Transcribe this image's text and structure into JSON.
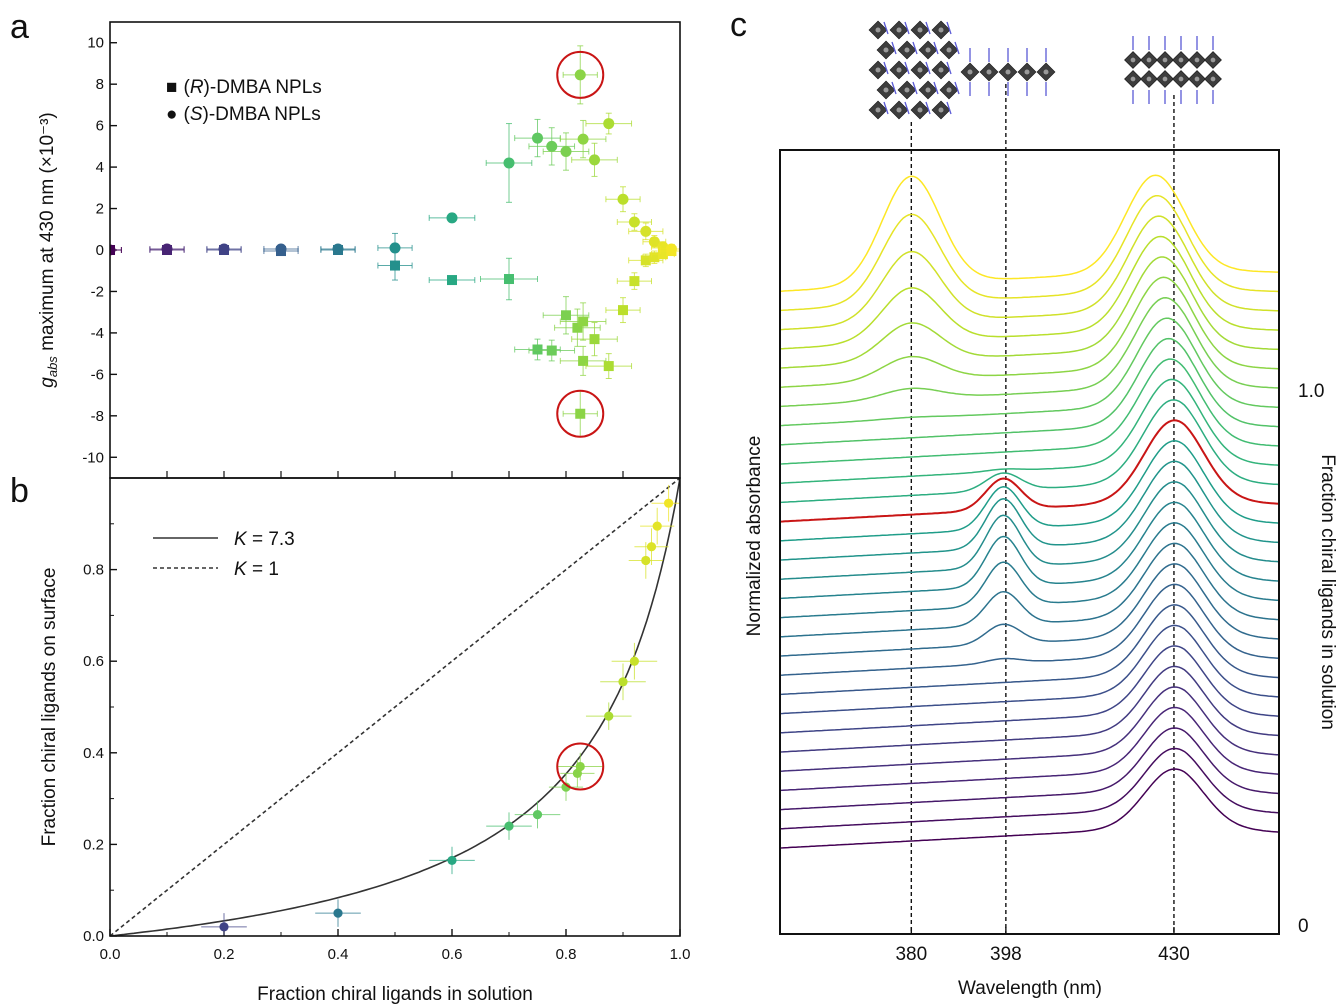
{
  "chart_data": [
    {
      "panel": "a",
      "type": "scatter",
      "xlim": [
        0,
        1
      ],
      "ylim": [
        -11,
        11
      ],
      "yticks": [
        -10,
        -8,
        -6,
        -4,
        -2,
        0,
        2,
        4,
        6,
        8,
        10
      ],
      "ylabel_italic": "g",
      "ylabel_sub": "abs",
      "ylabel_rest": " maximum at 430 nm (×10⁻³)",
      "legend": [
        {
          "symbol": "■",
          "pre": "(",
          "it": "R",
          "post": ")-DMBA NPLs"
        },
        {
          "symbol": "●",
          "pre": "(",
          "it": "S",
          "post": ")-DMBA NPLs"
        }
      ],
      "series": [
        {
          "marker": "circle",
          "points": [
            {
              "x": 0.0,
              "y": 0.0,
              "xerr": 0.02,
              "yerr": 0.1
            },
            {
              "x": 0.1,
              "y": 0.05,
              "xerr": 0.03,
              "yerr": 0.1
            },
            {
              "x": 0.2,
              "y": 0.05,
              "xerr": 0.03,
              "yerr": 0.1
            },
            {
              "x": 0.3,
              "y": 0.05,
              "xerr": 0.03,
              "yerr": 0.1
            },
            {
              "x": 0.4,
              "y": 0.05,
              "xerr": 0.03,
              "yerr": 0.1
            },
            {
              "x": 0.5,
              "y": 0.1,
              "xerr": 0.03,
              "yerr": 0.7
            },
            {
              "x": 0.6,
              "y": 1.55,
              "xerr": 0.04,
              "yerr": 0.2
            },
            {
              "x": 0.7,
              "y": 4.2,
              "xerr": 0.04,
              "yerr": 1.9
            },
            {
              "x": 0.75,
              "y": 5.4,
              "xerr": 0.04,
              "yerr": 0.9
            },
            {
              "x": 0.775,
              "y": 5.0,
              "xerr": 0.04,
              "yerr": 0.9
            },
            {
              "x": 0.8,
              "y": 4.75,
              "xerr": 0.04,
              "yerr": 0.9
            },
            {
              "x": 0.825,
              "y": 8.45,
              "xerr": 0.03,
              "yerr": 1.4
            },
            {
              "x": 0.83,
              "y": 5.35,
              "xerr": 0.04,
              "yerr": 0.9
            },
            {
              "x": 0.85,
              "y": 4.35,
              "xerr": 0.04,
              "yerr": 0.8
            },
            {
              "x": 0.875,
              "y": 6.1,
              "xerr": 0.04,
              "yerr": 0.5
            },
            {
              "x": 0.9,
              "y": 2.45,
              "xerr": 0.03,
              "yerr": 0.6
            },
            {
              "x": 0.92,
              "y": 1.35,
              "xerr": 0.03,
              "yerr": 0.4
            },
            {
              "x": 0.94,
              "y": 0.9,
              "xerr": 0.03,
              "yerr": 0.4
            },
            {
              "x": 0.955,
              "y": 0.4,
              "xerr": 0.02,
              "yerr": 0.3
            },
            {
              "x": 0.97,
              "y": 0.15,
              "xerr": 0.02,
              "yerr": 0.2
            },
            {
              "x": 0.985,
              "y": 0.05,
              "xerr": 0.02,
              "yerr": 0.1
            }
          ]
        },
        {
          "marker": "square",
          "points": [
            {
              "x": 0.0,
              "y": 0.0,
              "xerr": 0.02,
              "yerr": 0.1
            },
            {
              "x": 0.1,
              "y": 0.0,
              "xerr": 0.03,
              "yerr": 0.1
            },
            {
              "x": 0.2,
              "y": 0.0,
              "xerr": 0.03,
              "yerr": 0.1
            },
            {
              "x": 0.3,
              "y": -0.05,
              "xerr": 0.03,
              "yerr": 0.1
            },
            {
              "x": 0.4,
              "y": 0.0,
              "xerr": 0.03,
              "yerr": 0.1
            },
            {
              "x": 0.5,
              "y": -0.75,
              "xerr": 0.03,
              "yerr": 0.7
            },
            {
              "x": 0.6,
              "y": -1.45,
              "xerr": 0.04,
              "yerr": 0.2
            },
            {
              "x": 0.7,
              "y": -1.4,
              "xerr": 0.05,
              "yerr": 1.0
            },
            {
              "x": 0.75,
              "y": -4.8,
              "xerr": 0.04,
              "yerr": 0.5
            },
            {
              "x": 0.775,
              "y": -4.85,
              "xerr": 0.04,
              "yerr": 0.5
            },
            {
              "x": 0.8,
              "y": -3.15,
              "xerr": 0.04,
              "yerr": 0.9
            },
            {
              "x": 0.82,
              "y": -3.75,
              "xerr": 0.04,
              "yerr": 0.9
            },
            {
              "x": 0.825,
              "y": -7.9,
              "xerr": 0.03,
              "yerr": 1.1
            },
            {
              "x": 0.83,
              "y": -3.45,
              "xerr": 0.04,
              "yerr": 0.9
            },
            {
              "x": 0.83,
              "y": -5.35,
              "xerr": 0.04,
              "yerr": 0.7
            },
            {
              "x": 0.85,
              "y": -4.3,
              "xerr": 0.04,
              "yerr": 0.8
            },
            {
              "x": 0.875,
              "y": -5.6,
              "xerr": 0.04,
              "yerr": 0.6
            },
            {
              "x": 0.9,
              "y": -2.9,
              "xerr": 0.03,
              "yerr": 0.6
            },
            {
              "x": 0.92,
              "y": -1.5,
              "xerr": 0.03,
              "yerr": 0.4
            },
            {
              "x": 0.94,
              "y": -0.5,
              "xerr": 0.03,
              "yerr": 0.3
            },
            {
              "x": 0.955,
              "y": -0.35,
              "xerr": 0.02,
              "yerr": 0.3
            },
            {
              "x": 0.97,
              "y": -0.2,
              "xerr": 0.02,
              "yerr": 0.2
            },
            {
              "x": 0.985,
              "y": -0.05,
              "xerr": 0.02,
              "yerr": 0.1
            }
          ]
        }
      ],
      "highlight_circles": [
        {
          "x": 0.825,
          "y": 8.45
        },
        {
          "x": 0.825,
          "y": -7.9
        }
      ]
    },
    {
      "panel": "b",
      "type": "scatter",
      "xlim": [
        0,
        1
      ],
      "ylim": [
        0,
        1
      ],
      "xticks": [
        0,
        0.2,
        0.4,
        0.6,
        0.8,
        1
      ],
      "xtick_labels": [
        "0.0",
        "0.2",
        "0.4",
        "0.6",
        "0.8",
        "1.0"
      ],
      "yticks": [
        0,
        0.2,
        0.4,
        0.6,
        0.8
      ],
      "ytick_labels": [
        "0.0",
        "0.2",
        "0.4",
        "0.6",
        "0.8"
      ],
      "xlabel": "Fraction chiral ligands in solution",
      "ylabel": "Fraction chiral ligands on surface",
      "legend": [
        {
          "style": "solid",
          "it": "K",
          "rest": " = 7.3"
        },
        {
          "style": "dashed",
          "it": "K",
          "rest": " = 1"
        }
      ],
      "fit_K": [
        7.3,
        1
      ],
      "points": [
        {
          "x": 0.2,
          "y": 0.02,
          "xerr": 0.04,
          "yerr": 0.03
        },
        {
          "x": 0.4,
          "y": 0.05,
          "xerr": 0.04,
          "yerr": 0.03
        },
        {
          "x": 0.6,
          "y": 0.165,
          "xerr": 0.04,
          "yerr": 0.03
        },
        {
          "x": 0.7,
          "y": 0.24,
          "xerr": 0.04,
          "yerr": 0.03
        },
        {
          "x": 0.75,
          "y": 0.265,
          "xerr": 0.04,
          "yerr": 0.03
        },
        {
          "x": 0.8,
          "y": 0.325,
          "xerr": 0.03,
          "yerr": 0.03
        },
        {
          "x": 0.82,
          "y": 0.355,
          "xerr": 0.03,
          "yerr": 0.03
        },
        {
          "x": 0.825,
          "y": 0.37,
          "xerr": 0.04,
          "yerr": 0.03
        },
        {
          "x": 0.875,
          "y": 0.48,
          "xerr": 0.04,
          "yerr": 0.03
        },
        {
          "x": 0.9,
          "y": 0.555,
          "xerr": 0.04,
          "yerr": 0.04
        },
        {
          "x": 0.92,
          "y": 0.6,
          "xerr": 0.04,
          "yerr": 0.04
        },
        {
          "x": 0.94,
          "y": 0.82,
          "xerr": 0.03,
          "yerr": 0.04
        },
        {
          "x": 0.95,
          "y": 0.85,
          "xerr": 0.03,
          "yerr": 0.04
        },
        {
          "x": 0.96,
          "y": 0.895,
          "xerr": 0.03,
          "yerr": 0.04
        },
        {
          "x": 0.98,
          "y": 0.945,
          "xerr": 0.03,
          "yerr": 0.04
        }
      ],
      "highlight_circles": [
        {
          "x": 0.825,
          "y": 0.37
        }
      ]
    },
    {
      "panel": "c",
      "type": "line",
      "xlabel": "Wavelength (nm)",
      "ylabel": "Normalized absorbance",
      "right_label": "Fraction chiral ligands in solution",
      "right_ticks": [
        "1.0",
        "0"
      ],
      "xlim": [
        355,
        450
      ],
      "xticks": [
        380,
        398,
        430
      ],
      "reference_lines_nm": [
        380,
        398,
        430
      ],
      "n_spectra": 30,
      "highlighted_spectrum_index": 17,
      "highlight_color": "#c91515"
    }
  ],
  "panel_labels": [
    "a",
    "b",
    "c"
  ]
}
